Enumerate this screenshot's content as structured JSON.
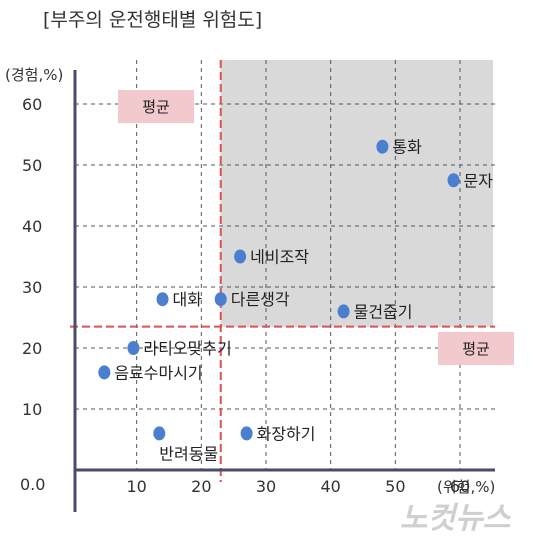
{
  "chart_data": {
    "type": "scatter",
    "title": "[부주의 운전행태별 위험도]",
    "xlabel": "위험,%",
    "ylabel": "경험,%",
    "origin_label": "0.0",
    "xlim": [
      0,
      70
    ],
    "ylim": [
      0,
      65
    ],
    "x_ticks": [
      10,
      20,
      30,
      40,
      50,
      60
    ],
    "y_ticks": [
      10,
      20,
      30,
      40,
      50,
      60
    ],
    "grid": true,
    "averages": {
      "x": 23,
      "y": 23.5,
      "x_label": "평균",
      "y_label": "평균"
    },
    "points": [
      {
        "label": "통화",
        "x": 48,
        "y": 53
      },
      {
        "label": "문자",
        "x": 59,
        "y": 47.5
      },
      {
        "label": "네비조작",
        "x": 26,
        "y": 35
      },
      {
        "label": "대화",
        "x": 14,
        "y": 28
      },
      {
        "label": "다른생각",
        "x": 23,
        "y": 28
      },
      {
        "label": "물건줍기",
        "x": 42,
        "y": 26
      },
      {
        "label": "라티오맞추기",
        "x": 9.5,
        "y": 20
      },
      {
        "label": "음료수마시기",
        "x": 5,
        "y": 16
      },
      {
        "label": "반려동물",
        "x": 13.5,
        "y": 6
      },
      {
        "label": "화장하기",
        "x": 27,
        "y": 6
      }
    ],
    "colors": {
      "point": "#4a7fd0",
      "avg_line": "#d9534f",
      "quadrant": "#d9d9d9",
      "avg_box": "#f2c9cc"
    }
  },
  "watermark": "노컷뉴스"
}
